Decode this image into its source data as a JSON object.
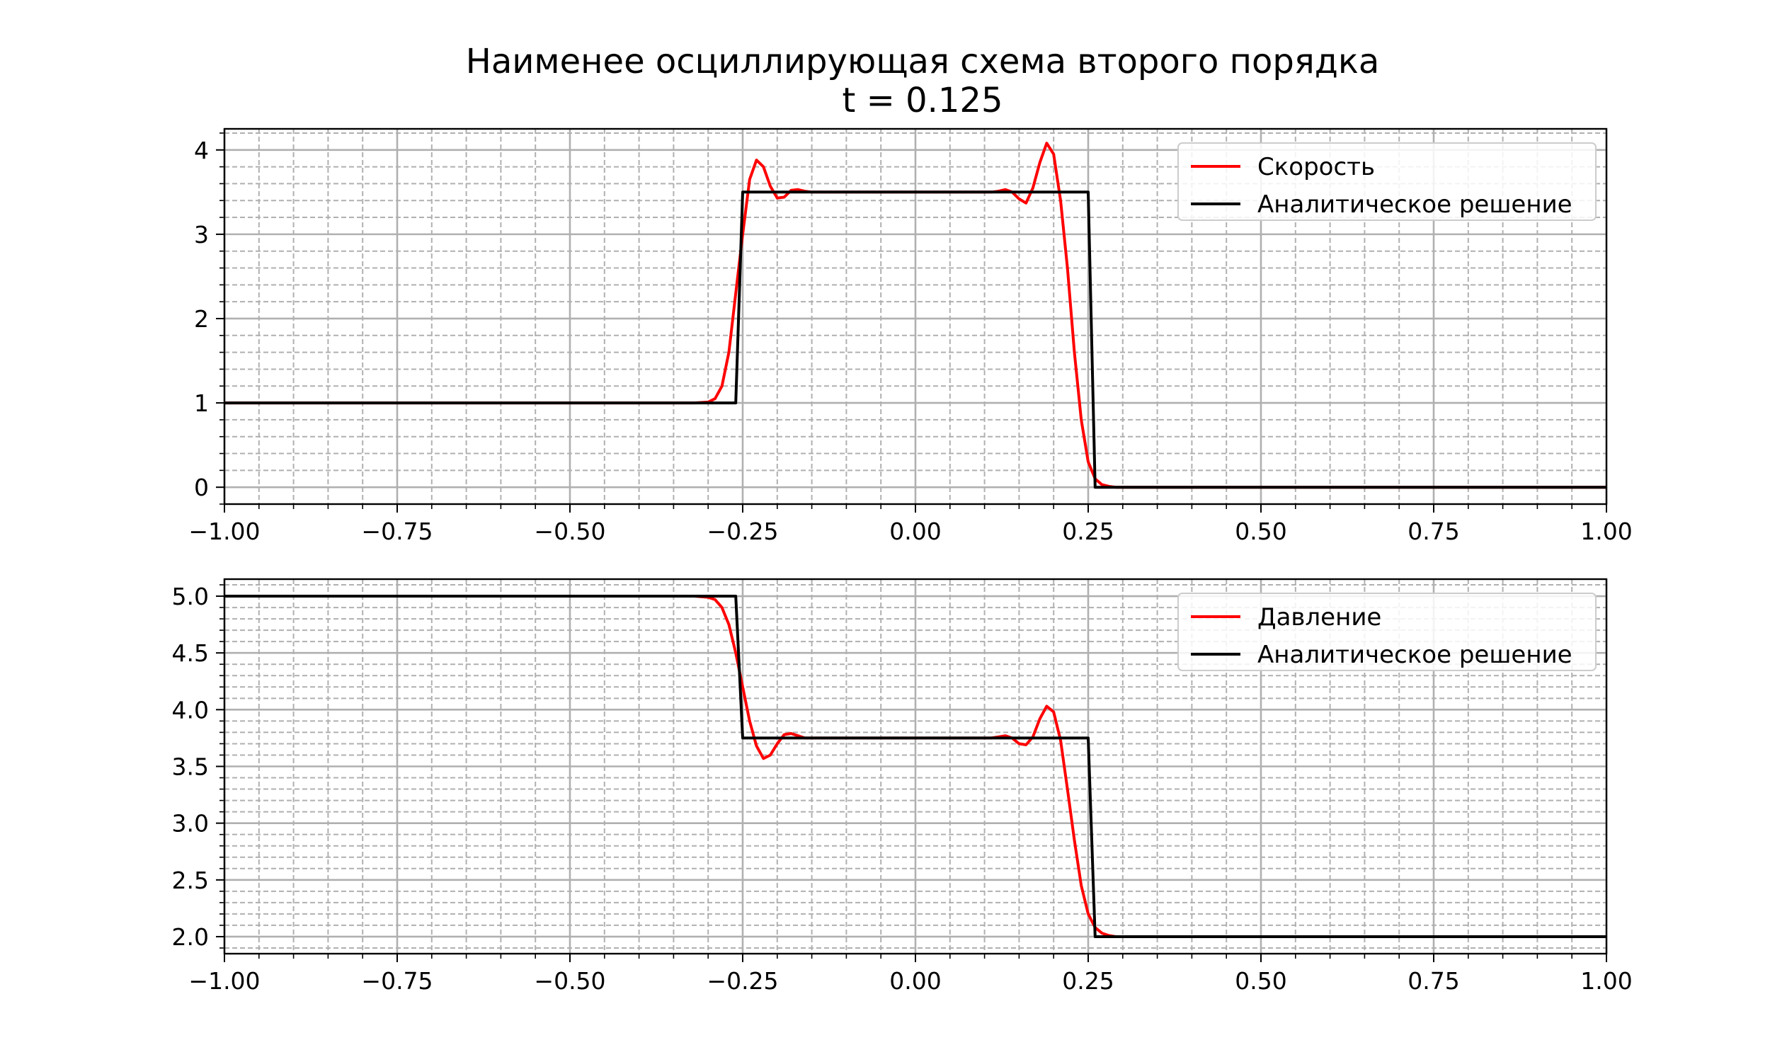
{
  "figure": {
    "title": "Наименее осциллирующая схема второго порядка",
    "subtitle": "t = 0.125"
  },
  "colors": {
    "numeric": "#ff0000",
    "analytic": "#000000",
    "major_grid": "#b0b0b0",
    "minor_grid": "#b0b0b0"
  },
  "chart_data": [
    {
      "type": "line",
      "title": "",
      "xlabel": "",
      "ylabel": "",
      "xlim": [
        -1.0,
        1.0
      ],
      "ylim": [
        -0.2,
        4.25
      ],
      "xticks": [
        -1.0,
        -0.75,
        -0.5,
        -0.25,
        0.0,
        0.25,
        0.5,
        0.75,
        1.0
      ],
      "xtick_labels": [
        "−1.00",
        "−0.75",
        "−0.50",
        "−0.25",
        "0.00",
        "0.25",
        "0.50",
        "0.75",
        "1.00"
      ],
      "yticks": [
        0,
        1,
        2,
        3,
        4
      ],
      "ytick_labels": [
        "0",
        "1",
        "2",
        "3",
        "4"
      ],
      "x_minor_step": 0.05,
      "y_minor_step": 0.2,
      "grid": true,
      "legend_position": "upper right",
      "series": [
        {
          "name": "Скорость",
          "color": "#ff0000",
          "style": "numeric",
          "x": [
            -1.0,
            -0.5,
            -0.32,
            -0.3,
            -0.29,
            -0.28,
            -0.27,
            -0.26,
            -0.25,
            -0.24,
            -0.23,
            -0.22,
            -0.21,
            -0.2,
            -0.19,
            -0.18,
            -0.17,
            -0.16,
            -0.15,
            -0.14,
            -0.13,
            -0.12,
            0.0,
            0.1,
            0.11,
            0.12,
            0.13,
            0.14,
            0.15,
            0.16,
            0.17,
            0.18,
            0.19,
            0.2,
            0.21,
            0.22,
            0.23,
            0.24,
            0.25,
            0.26,
            0.27,
            0.28,
            0.29,
            0.3,
            0.5,
            1.0
          ],
          "y": [
            1.0,
            1.0,
            1.0,
            1.01,
            1.05,
            1.2,
            1.6,
            2.3,
            3.0,
            3.65,
            3.88,
            3.8,
            3.57,
            3.43,
            3.44,
            3.52,
            3.53,
            3.51,
            3.5,
            3.5,
            3.5,
            3.5,
            3.5,
            3.5,
            3.5,
            3.51,
            3.53,
            3.5,
            3.42,
            3.37,
            3.55,
            3.85,
            4.08,
            3.95,
            3.4,
            2.6,
            1.6,
            0.8,
            0.3,
            0.1,
            0.03,
            0.01,
            0.0,
            0.0,
            0.0,
            0.0
          ]
        },
        {
          "name": "Аналитическое решение",
          "color": "#000000",
          "style": "analytic",
          "x": [
            -1.0,
            -0.26,
            -0.26,
            -0.25,
            -0.25,
            0.25,
            0.25,
            0.26,
            0.26,
            1.0
          ],
          "y": [
            1.0,
            1.0,
            1.0,
            3.5,
            3.5,
            3.5,
            3.5,
            0.0,
            0.0,
            0.0
          ]
        }
      ]
    },
    {
      "type": "line",
      "title": "",
      "xlabel": "",
      "ylabel": "",
      "xlim": [
        -1.0,
        1.0
      ],
      "ylim": [
        1.85,
        5.15
      ],
      "xticks": [
        -1.0,
        -0.75,
        -0.5,
        -0.25,
        0.0,
        0.25,
        0.5,
        0.75,
        1.0
      ],
      "xtick_labels": [
        "−1.00",
        "−0.75",
        "−0.50",
        "−0.25",
        "0.00",
        "0.25",
        "0.50",
        "0.75",
        "1.00"
      ],
      "yticks": [
        2.0,
        2.5,
        3.0,
        3.5,
        4.0,
        4.5,
        5.0
      ],
      "ytick_labels": [
        "2.0",
        "2.5",
        "3.0",
        "3.5",
        "4.0",
        "4.5",
        "5.0"
      ],
      "x_minor_step": 0.05,
      "y_minor_step": 0.1,
      "grid": true,
      "legend_position": "upper right",
      "series": [
        {
          "name": "Давление",
          "color": "#ff0000",
          "style": "numeric",
          "x": [
            -1.0,
            -0.5,
            -0.32,
            -0.3,
            -0.29,
            -0.28,
            -0.27,
            -0.26,
            -0.25,
            -0.24,
            -0.23,
            -0.22,
            -0.21,
            -0.2,
            -0.19,
            -0.18,
            -0.17,
            -0.16,
            -0.15,
            -0.14,
            -0.13,
            0.0,
            0.1,
            0.11,
            0.12,
            0.13,
            0.14,
            0.15,
            0.16,
            0.17,
            0.18,
            0.19,
            0.2,
            0.21,
            0.22,
            0.23,
            0.24,
            0.25,
            0.26,
            0.27,
            0.28,
            0.29,
            0.3,
            0.5,
            1.0
          ],
          "y": [
            5.0,
            5.0,
            5.0,
            4.99,
            4.97,
            4.9,
            4.75,
            4.5,
            4.2,
            3.9,
            3.68,
            3.57,
            3.6,
            3.7,
            3.78,
            3.79,
            3.77,
            3.75,
            3.75,
            3.75,
            3.75,
            3.75,
            3.75,
            3.75,
            3.76,
            3.77,
            3.75,
            3.7,
            3.69,
            3.76,
            3.92,
            4.03,
            3.98,
            3.73,
            3.3,
            2.85,
            2.45,
            2.2,
            2.08,
            2.03,
            2.01,
            2.0,
            2.0,
            2.0,
            2.0
          ]
        },
        {
          "name": "Аналитическое решение",
          "color": "#000000",
          "style": "analytic",
          "x": [
            -1.0,
            -0.26,
            -0.26,
            -0.25,
            -0.25,
            0.25,
            0.25,
            0.26,
            0.26,
            1.0
          ],
          "y": [
            5.0,
            5.0,
            5.0,
            3.75,
            3.75,
            3.75,
            3.75,
            2.0,
            2.0,
            2.0
          ]
        }
      ]
    }
  ]
}
